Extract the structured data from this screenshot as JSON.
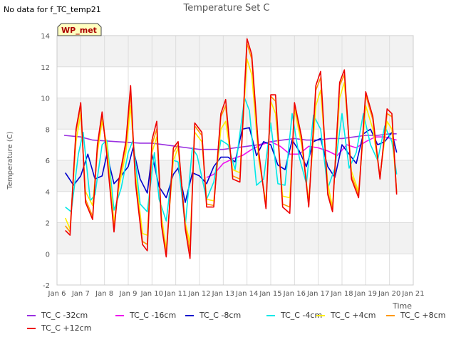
{
  "note": "No data for f_TC_temp21",
  "chart_data": {
    "type": "line",
    "title": "Temperature Set C",
    "xlabel": "Time",
    "ylabel": "Temperature (C)",
    "xlim": [
      6,
      21
    ],
    "ylim": [
      -2,
      14
    ],
    "x_ticks": [
      6,
      7,
      8,
      9,
      10,
      11,
      12,
      13,
      14,
      15,
      16,
      17,
      18,
      19,
      20,
      21
    ],
    "x_tick_labels": [
      "Jan 6",
      "Jan 7",
      "Jan 8",
      "Jan 9",
      "Jan 10",
      "Jan 11",
      "Jan 12",
      "Jan 13",
      "Jan 14",
      "Jan 15",
      "Jan 16",
      "Jan 17",
      "Jan 18",
      "Jan 19",
      "Jan 20",
      "Jan 21"
    ],
    "y_ticks": [
      -2,
      0,
      2,
      4,
      6,
      8,
      10,
      12,
      14
    ],
    "y_tick_labels": [
      "-2",
      "0",
      "2",
      "4",
      "6",
      "8",
      "10",
      "12",
      "14"
    ],
    "grid": true,
    "legend_position": "bottom",
    "badge": "WP_met",
    "series": [
      {
        "name": "TC_C -32cm",
        "color": "#9a30e0",
        "x": [
          6.3,
          7,
          7.5,
          8,
          8.5,
          9,
          9.5,
          10,
          10.5,
          11,
          11.5,
          12,
          12.5,
          13,
          13.5,
          14,
          14.5,
          15,
          15.5,
          16,
          16.5,
          17,
          17.5,
          18,
          18.5,
          19,
          19.5,
          20,
          20.3
        ],
        "y": [
          7.6,
          7.5,
          7.3,
          7.25,
          7.2,
          7.15,
          7.1,
          7.1,
          7.0,
          6.9,
          6.8,
          6.7,
          6.7,
          6.7,
          6.8,
          6.9,
          7.0,
          7.2,
          7.3,
          7.4,
          7.3,
          7.3,
          7.4,
          7.4,
          7.5,
          7.6,
          7.6,
          7.7,
          7.7
        ]
      },
      {
        "name": "TC_C -16cm",
        "color": "#ee10ee",
        "x": [
          12.3,
          12.6,
          13,
          13.4,
          13.8,
          14.2,
          14.6,
          15,
          15.4,
          15.8,
          16.2,
          16.6,
          17,
          17.4,
          17.8,
          18.2,
          18.6,
          19,
          19.4,
          19.8,
          20.3
        ],
        "y": [
          4.9,
          5.1,
          5.8,
          6.1,
          6.3,
          6.7,
          7.0,
          7.2,
          6.9,
          6.4,
          6.4,
          6.9,
          6.8,
          6.6,
          6.3,
          7.0,
          6.8,
          7.2,
          7.5,
          7.5,
          7.3
        ]
      },
      {
        "name": "TC_C -8cm",
        "color": "#0000cc",
        "x": [
          6.35,
          6.7,
          7.0,
          7.3,
          7.6,
          7.9,
          8.1,
          8.4,
          8.7,
          9.0,
          9.2,
          9.5,
          9.8,
          10.0,
          10.3,
          10.6,
          10.9,
          11.1,
          11.4,
          11.7,
          12.0,
          12.3,
          12.6,
          12.9,
          13.2,
          13.5,
          13.8,
          14.1,
          14.4,
          14.7,
          15.0,
          15.3,
          15.6,
          15.9,
          16.2,
          16.5,
          16.8,
          17.1,
          17.4,
          17.7,
          18.0,
          18.3,
          18.6,
          18.9,
          19.2,
          19.5,
          19.8,
          20.1,
          20.3
        ],
        "y": [
          5.2,
          4.4,
          5.0,
          6.4,
          4.8,
          5.0,
          6.4,
          4.5,
          5.0,
          5.6,
          6.8,
          4.8,
          3.9,
          6.4,
          4.3,
          3.6,
          5.1,
          5.5,
          3.3,
          5.2,
          5.0,
          4.5,
          5.6,
          6.2,
          6.2,
          5.9,
          8.0,
          8.1,
          6.3,
          7.2,
          7.0,
          5.7,
          5.4,
          7.3,
          6.6,
          5.6,
          7.2,
          7.4,
          5.6,
          4.9,
          7.0,
          6.4,
          5.8,
          7.7,
          8.0,
          7.0,
          7.2,
          7.8,
          6.5
        ]
      },
      {
        "name": "TC_C -4cm",
        "color": "#00e8e8",
        "x": [
          6.35,
          6.6,
          6.9,
          7.1,
          7.4,
          7.6,
          7.9,
          8.1,
          8.4,
          8.7,
          9.0,
          9.2,
          9.5,
          9.8,
          10.1,
          10.3,
          10.6,
          10.9,
          11.1,
          11.4,
          11.7,
          11.9,
          12.3,
          12.6,
          12.9,
          13.2,
          13.5,
          13.9,
          14.1,
          14.4,
          14.7,
          15.0,
          15.3,
          15.6,
          15.9,
          16.2,
          16.5,
          16.8,
          17.1,
          17.4,
          17.7,
          18.0,
          18.3,
          18.6,
          18.9,
          19.2,
          19.5,
          19.8,
          20.1,
          20.3
        ],
        "y": [
          3.0,
          2.7,
          6.4,
          7.8,
          3.4,
          3.8,
          7.0,
          7.3,
          2.8,
          4.2,
          6.5,
          7.3,
          3.2,
          2.7,
          6.5,
          3.5,
          2.1,
          6.0,
          5.9,
          1.8,
          6.8,
          6.3,
          3.5,
          4.6,
          7.3,
          7.0,
          5.4,
          10.0,
          9.2,
          4.4,
          4.8,
          8.4,
          4.5,
          4.4,
          9.0,
          6.2,
          4.5,
          8.9,
          8.0,
          4.2,
          5.5,
          9.0,
          5.5,
          6.5,
          9.0,
          7.0,
          6.0,
          8.2,
          7.2,
          5.1
        ]
      },
      {
        "name": "TC_C +4cm",
        "color": "#ffee00",
        "x": [
          6.35,
          6.55,
          6.8,
          7.0,
          7.2,
          7.5,
          7.7,
          7.9,
          8.1,
          8.4,
          8.6,
          8.9,
          9.1,
          9.3,
          9.6,
          9.8,
          10.0,
          10.2,
          10.4,
          10.6,
          10.9,
          11.1,
          11.4,
          11.6,
          11.8,
          12.1,
          12.3,
          12.6,
          12.9,
          13.1,
          13.4,
          13.7,
          14.0,
          14.2,
          14.5,
          14.8,
          15.0,
          15.2,
          15.5,
          15.8,
          16.0,
          16.3,
          16.6,
          16.9,
          17.1,
          17.4,
          17.6,
          17.9,
          18.1,
          18.4,
          18.7,
          19.0,
          19.3,
          19.6,
          19.9,
          20.1,
          20.3
        ],
        "y": [
          2.3,
          1.6,
          7.2,
          9.0,
          4.0,
          3.1,
          6.5,
          8.5,
          7.0,
          2.0,
          4.2,
          6.5,
          9.5,
          5.2,
          1.3,
          1.2,
          6.5,
          7.5,
          2.4,
          0.3,
          6.0,
          6.8,
          2.0,
          0.7,
          7.8,
          7.2,
          3.5,
          3.4,
          8.0,
          8.5,
          5.4,
          5.2,
          12.5,
          11.5,
          6.0,
          3.3,
          9.8,
          9.0,
          3.7,
          3.6,
          9.3,
          7.0,
          3.4,
          9.5,
          10.5,
          4.5,
          3.0,
          10.0,
          11.0,
          5.3,
          4.0,
          9.5,
          8.0,
          5.0,
          8.5,
          8.0,
          4.0
        ]
      },
      {
        "name": "TC_C +8cm",
        "color": "#ff9900",
        "x": [
          6.35,
          6.55,
          6.8,
          7.0,
          7.2,
          7.5,
          7.7,
          7.9,
          8.1,
          8.4,
          8.6,
          8.9,
          9.1,
          9.3,
          9.6,
          9.8,
          10.0,
          10.2,
          10.4,
          10.6,
          10.9,
          11.1,
          11.4,
          11.6,
          11.8,
          12.1,
          12.3,
          12.6,
          12.9,
          13.1,
          13.4,
          13.7,
          14.0,
          14.2,
          14.5,
          14.8,
          15.0,
          15.2,
          15.5,
          15.8,
          16.0,
          16.3,
          16.6,
          16.9,
          17.1,
          17.4,
          17.6,
          17.9,
          18.1,
          18.4,
          18.7,
          19.0,
          19.3,
          19.6,
          19.9,
          20.1,
          20.3
        ],
        "y": [
          1.8,
          1.4,
          7.8,
          9.5,
          3.5,
          2.4,
          6.8,
          8.9,
          6.5,
          1.6,
          4.5,
          7.0,
          10.3,
          4.8,
          0.8,
          0.6,
          7.0,
          8.0,
          2.0,
          0.0,
          6.5,
          7.0,
          1.8,
          0.2,
          8.2,
          7.6,
          3.2,
          3.1,
          8.8,
          9.5,
          5.0,
          4.8,
          13.5,
          12.5,
          6.3,
          3.0,
          10.1,
          9.8,
          3.2,
          3.0,
          9.6,
          7.3,
          3.1,
          10.5,
          11.3,
          4.0,
          2.8,
          10.8,
          11.5,
          5.0,
          3.8,
          10.2,
          8.6,
          4.9,
          9.0,
          8.8,
          3.9
        ]
      },
      {
        "name": "TC_C +12cm",
        "color": "#ee0000",
        "x": [
          6.35,
          6.55,
          6.8,
          7.0,
          7.2,
          7.5,
          7.7,
          7.9,
          8.1,
          8.4,
          8.6,
          8.9,
          9.1,
          9.3,
          9.6,
          9.8,
          10.0,
          10.2,
          10.4,
          10.6,
          10.9,
          11.1,
          11.4,
          11.6,
          11.8,
          12.1,
          12.3,
          12.6,
          12.9,
          13.1,
          13.4,
          13.7,
          14.0,
          14.2,
          14.5,
          14.8,
          15.0,
          15.2,
          15.5,
          15.8,
          16.0,
          16.3,
          16.6,
          16.9,
          17.1,
          17.4,
          17.6,
          17.9,
          18.1,
          18.4,
          18.7,
          19.0,
          19.3,
          19.6,
          19.9,
          20.1,
          20.3
        ],
        "y": [
          1.5,
          1.2,
          8.0,
          9.7,
          3.3,
          2.2,
          7.0,
          9.1,
          6.3,
          1.4,
          4.7,
          7.2,
          10.8,
          4.6,
          0.6,
          0.2,
          7.3,
          8.5,
          1.8,
          -0.2,
          6.8,
          7.2,
          1.6,
          -0.3,
          8.4,
          7.8,
          3.0,
          3.0,
          9.0,
          9.9,
          4.8,
          4.6,
          13.8,
          12.8,
          6.5,
          2.9,
          10.2,
          10.2,
          3.0,
          2.6,
          9.7,
          7.5,
          3.0,
          10.8,
          11.7,
          3.8,
          2.7,
          11.0,
          11.8,
          4.8,
          3.6,
          10.4,
          8.8,
          4.8,
          9.3,
          9.0,
          3.8
        ]
      }
    ]
  }
}
